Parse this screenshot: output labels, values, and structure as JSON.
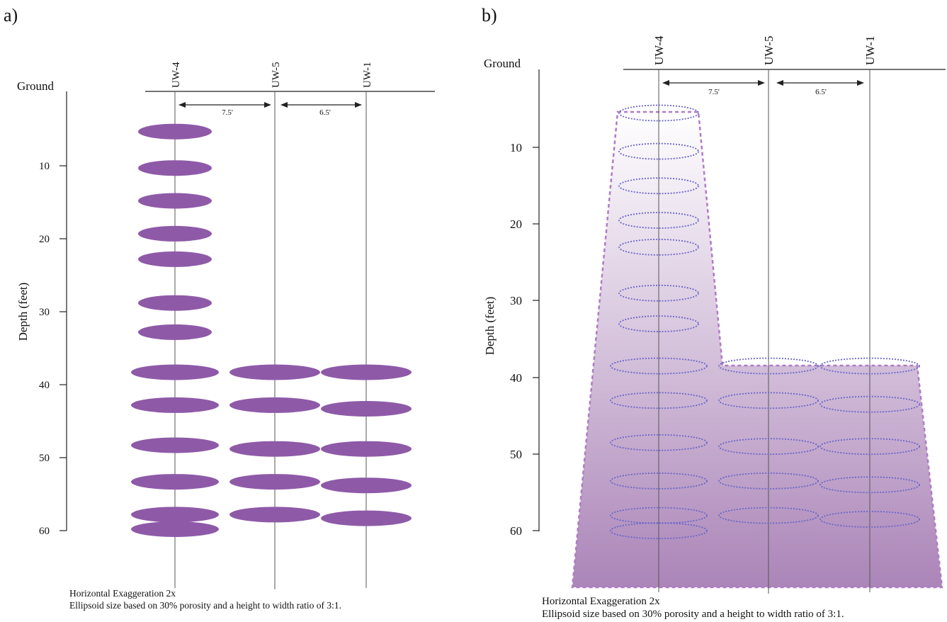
{
  "colors": {
    "ellipse_fill": "#8e5aa8",
    "ellipse_outline": "#6a66c8",
    "plume_top": "#ffffff",
    "plume_bottom": "#ab85b8",
    "plume_edge": "#b07ac6",
    "line": "#222222"
  },
  "panel_a": {
    "label": "a)",
    "ground_label": "Ground",
    "ylabel": "Depth (feet)",
    "wells": [
      "UW-4",
      "UW-5",
      "UW-1"
    ],
    "spacings": [
      "7.5'",
      "6.5'"
    ],
    "yticks": [
      "10",
      "20",
      "30",
      "40",
      "50",
      "60"
    ],
    "note_line1": "Horizontal Exaggeration 2x",
    "note_line2": "Ellipsoid size based on 30% porosity and a height to width ratio of 3:1."
  },
  "panel_b": {
    "label": "b)",
    "ground_label": "Ground",
    "ylabel": "Depth (feet)",
    "wells": [
      "UW-4",
      "UW-5",
      "UW-1"
    ],
    "spacings": [
      "7.5'",
      "6.5'"
    ],
    "yticks": [
      "10",
      "20",
      "30",
      "40",
      "50",
      "60"
    ],
    "note_line1": "Horizontal Exaggeration 2x",
    "note_line2": "Ellipsoid size based on 30% porosity and a height to width  ratio of 3:1."
  },
  "ellipse_depths_ft": {
    "UW-4": [
      5.5,
      10.5,
      15,
      19.5,
      23,
      29,
      33,
      38.5,
      43,
      48.5,
      53.5,
      58,
      60
    ],
    "UW-5": [
      38.5,
      43,
      49,
      53.5,
      58
    ],
    "UW-1": [
      38.5,
      43.5,
      49,
      54,
      58.5
    ]
  }
}
